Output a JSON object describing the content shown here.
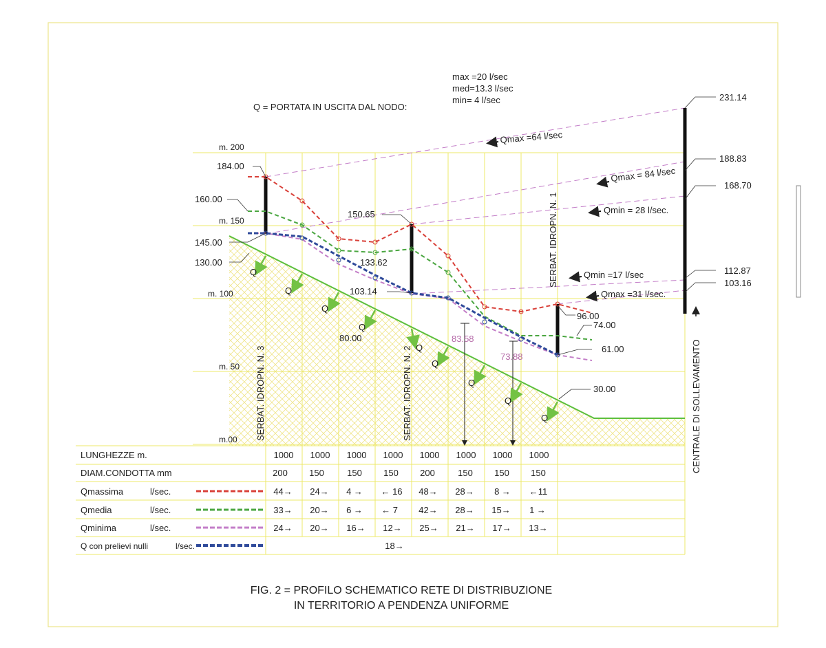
{
  "header": {
    "q_definition": "Q = PORTATA  IN  USCITA  DAL  NODO:",
    "q_values": [
      "max =20 l/sec",
      "med=13.3 l/sec",
      "min= 4 l/sec"
    ]
  },
  "elevation_scale": [
    "m. 200",
    "m. 150",
    "m. 100",
    "m. 50",
    "m.00"
  ],
  "left_labels": [
    "184.00",
    "160.00",
    "145.00",
    "130.00"
  ],
  "mid_labels": [
    "150.65",
    "133.62",
    "103.14",
    "80.00"
  ],
  "tower_labels": [
    "83.58",
    "73.88"
  ],
  "right_labels": [
    "231.14",
    "188.83",
    "168.70",
    "112.87",
    "103.16",
    "96.00",
    "74.00",
    "61.00",
    "30.00"
  ],
  "flow_labels": [
    "Qmax =64 l/sec",
    "Qmax = 84 l/sec",
    "Qmin  = 28 l/sec.",
    "Qmin =17 l/sec",
    "Qmax =31 l/sec."
  ],
  "flow_marker": "Q",
  "vertical_labels": {
    "reservoir_3": "SERBAT. IDROPN. N. 3",
    "reservoir_2": "SERBAT. IDROPN. N. 2",
    "reservoir_1": "SERBAT. IDROPN. N. 1",
    "pumping": "CENTRALE DI SOLLEVAMENTO"
  },
  "legend_colors": {
    "qmax": "#d9413a",
    "qmed": "#4aa640",
    "qmin": "#c37ec8",
    "qnull": "#2f4a9a",
    "ground": "#5cbf3c",
    "arrow": "#73c244",
    "grid": "#ece86a"
  },
  "table": {
    "rows": [
      {
        "label": "LUNGHEZZE  m.",
        "unit": "",
        "line": "",
        "cells": [
          "1000",
          "1000",
          "1000",
          "1000",
          "1000",
          "1000",
          "1000",
          "1000"
        ]
      },
      {
        "label": "DIAM.CONDOTTA   mm",
        "unit": "",
        "line": "",
        "cells": [
          "200",
          "150",
          "150",
          "150",
          "200",
          "150",
          "150",
          "150"
        ]
      },
      {
        "label": "Qmassima",
        "unit": "l/sec.",
        "line": "qmax",
        "cells": [
          "44→",
          "24→",
          "4 →",
          "← 16",
          "48→",
          "28→",
          "8 →",
          "←11"
        ]
      },
      {
        "label": "Qmedia",
        "unit": "l/sec.",
        "line": "qmed",
        "cells": [
          "33→",
          "20→",
          "6 →",
          "← 7",
          "42→",
          "28→",
          "15→",
          "1 →"
        ]
      },
      {
        "label": "Qminima",
        "unit": "l/sec.",
        "line": "qmin",
        "cells": [
          "24→",
          "20→",
          "16→",
          "12→",
          "25→",
          "21→",
          "17→",
          "13→"
        ]
      },
      {
        "label": "Q con prelievi nulli",
        "unit": "l/sec.",
        "line": "qnull",
        "cells": [
          "18→"
        ]
      }
    ]
  },
  "caption": [
    "FIG. 2  = PROFILO SCHEMATICO RETE DI DISTRIBUZIONE",
    "IN TERRITORIO A PENDENZA UNIFORME"
  ]
}
